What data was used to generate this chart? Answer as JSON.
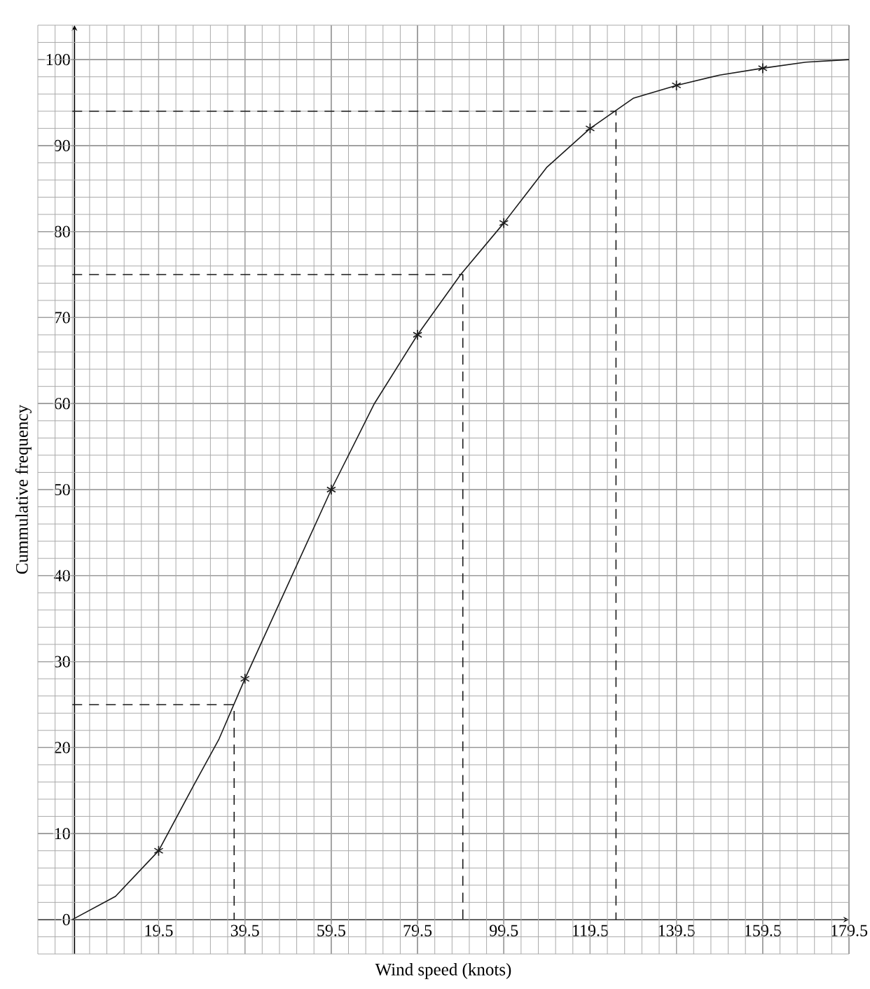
{
  "chart_data": {
    "type": "line",
    "xlabel": "Wind speed (knots)",
    "ylabel": "Cummulative frequency",
    "xlim": [
      -8.5,
      179.5
    ],
    "ylim": [
      -4,
      104
    ],
    "xticks": [
      19.5,
      39.5,
      59.5,
      79.5,
      99.5,
      119.5,
      139.5,
      159.5,
      179.5
    ],
    "yticks": [
      0,
      10,
      20,
      30,
      40,
      50,
      60,
      70,
      80,
      90,
      100
    ],
    "grid": true,
    "series": [
      {
        "type": "line",
        "color": "#1a1a1a",
        "marker": "none",
        "line_style": "solid",
        "x": [
          -0.5,
          9.5,
          19.5,
          27.5,
          33.5,
          39.5,
          49.5,
          59.5,
          69.5,
          79.5,
          89.5,
          99.5,
          109.5,
          119.5,
          129.5,
          139.5,
          149.5,
          159.5,
          169.5,
          179.5
        ],
        "values": [
          0,
          2.7,
          8,
          15.5,
          21,
          28,
          39,
          50,
          60,
          68,
          75,
          81,
          87.5,
          92,
          95.5,
          97,
          98.2,
          99,
          99.7,
          100
        ]
      },
      {
        "type": "scatter",
        "color": "#1a1a1a",
        "marker": "cross",
        "x": [
          19.5,
          39.5,
          59.5,
          79.5,
          99.5,
          119.5,
          139.5,
          159.5
        ],
        "values": [
          8,
          28,
          50,
          68,
          81,
          92,
          97,
          99
        ]
      },
      {
        "type": "line",
        "color": "#1a1a1a",
        "marker": "none",
        "line_style": "dashed",
        "x": [
          -0.5,
          37,
          37
        ],
        "values": [
          25,
          25,
          0
        ]
      },
      {
        "type": "line",
        "color": "#1a1a1a",
        "marker": "none",
        "line_style": "dashed",
        "x": [
          -0.5,
          90,
          90
        ],
        "values": [
          75,
          75,
          0
        ]
      },
      {
        "type": "line",
        "color": "#1a1a1a",
        "marker": "none",
        "line_style": "dashed",
        "x": [
          -0.5,
          125.5,
          125.5
        ],
        "values": [
          94,
          94,
          0
        ]
      }
    ]
  }
}
